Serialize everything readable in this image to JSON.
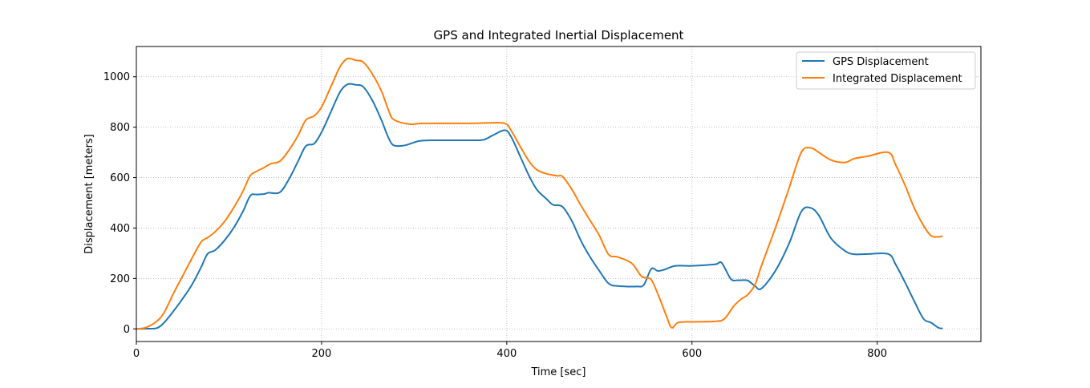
{
  "chart_data": {
    "type": "line",
    "title": "GPS and Integrated Inertial Displacement",
    "xlabel": "Time [sec]",
    "ylabel": "Displacement [meters]",
    "xlim": [
      0,
      912
    ],
    "ylim": [
      -50,
      1120
    ],
    "xticks": [
      0,
      200,
      400,
      600,
      800
    ],
    "yticks": [
      0,
      200,
      400,
      600,
      800,
      1000
    ],
    "grid": true,
    "legend_position": "upper right",
    "series": [
      {
        "name": "GPS Displacement",
        "color": "#1f77b4",
        "points": [
          [
            0,
            0
          ],
          [
            10,
            1
          ],
          [
            22,
            3
          ],
          [
            30,
            25
          ],
          [
            40,
            70
          ],
          [
            50,
            120
          ],
          [
            60,
            175
          ],
          [
            70,
            245
          ],
          [
            77,
            298
          ],
          [
            85,
            312
          ],
          [
            95,
            350
          ],
          [
            105,
            400
          ],
          [
            115,
            465
          ],
          [
            123,
            528
          ],
          [
            130,
            533
          ],
          [
            138,
            535
          ],
          [
            143,
            540
          ],
          [
            155,
            542
          ],
          [
            165,
            595
          ],
          [
            175,
            668
          ],
          [
            183,
            725
          ],
          [
            192,
            735
          ],
          [
            200,
            780
          ],
          [
            210,
            860
          ],
          [
            220,
            940
          ],
          [
            228,
            970
          ],
          [
            237,
            968
          ],
          [
            245,
            960
          ],
          [
            255,
            905
          ],
          [
            265,
            825
          ],
          [
            272,
            760
          ],
          [
            278,
            728
          ],
          [
            290,
            728
          ],
          [
            305,
            745
          ],
          [
            320,
            748
          ],
          [
            360,
            748
          ],
          [
            375,
            750
          ],
          [
            385,
            768
          ],
          [
            398,
            788
          ],
          [
            405,
            760
          ],
          [
            415,
            680
          ],
          [
            425,
            600
          ],
          [
            433,
            550
          ],
          [
            443,
            515
          ],
          [
            450,
            492
          ],
          [
            460,
            485
          ],
          [
            470,
            430
          ],
          [
            480,
            350
          ],
          [
            490,
            285
          ],
          [
            500,
            230
          ],
          [
            510,
            180
          ],
          [
            520,
            170
          ],
          [
            540,
            168
          ],
          [
            548,
            175
          ],
          [
            556,
            238
          ],
          [
            563,
            230
          ],
          [
            570,
            235
          ],
          [
            582,
            250
          ],
          [
            600,
            250
          ],
          [
            625,
            256
          ],
          [
            632,
            262
          ],
          [
            642,
            198
          ],
          [
            650,
            193
          ],
          [
            660,
            192
          ],
          [
            668,
            170
          ],
          [
            675,
            160
          ],
          [
            690,
            230
          ],
          [
            705,
            340
          ],
          [
            718,
            465
          ],
          [
            728,
            480
          ],
          [
            737,
            450
          ],
          [
            750,
            360
          ],
          [
            765,
            310
          ],
          [
            775,
            296
          ],
          [
            790,
            297
          ],
          [
            812,
            297
          ],
          [
            820,
            255
          ],
          [
            830,
            185
          ],
          [
            840,
            110
          ],
          [
            850,
            40
          ],
          [
            858,
            25
          ],
          [
            866,
            5
          ],
          [
            870,
            2
          ]
        ]
      },
      {
        "name": "Integrated Displacement",
        "color": "#ff7f0e",
        "points": [
          [
            0,
            0
          ],
          [
            10,
            5
          ],
          [
            22,
            30
          ],
          [
            30,
            65
          ],
          [
            40,
            140
          ],
          [
            50,
            210
          ],
          [
            60,
            280
          ],
          [
            70,
            345
          ],
          [
            77,
            362
          ],
          [
            85,
            385
          ],
          [
            95,
            425
          ],
          [
            105,
            480
          ],
          [
            115,
            545
          ],
          [
            123,
            608
          ],
          [
            130,
            625
          ],
          [
            138,
            640
          ],
          [
            145,
            655
          ],
          [
            155,
            665
          ],
          [
            165,
            710
          ],
          [
            175,
            770
          ],
          [
            183,
            828
          ],
          [
            192,
            845
          ],
          [
            200,
            880
          ],
          [
            210,
            960
          ],
          [
            220,
            1040
          ],
          [
            228,
            1072
          ],
          [
            237,
            1065
          ],
          [
            245,
            1058
          ],
          [
            255,
            1010
          ],
          [
            265,
            940
          ],
          [
            272,
            870
          ],
          [
            278,
            830
          ],
          [
            295,
            812
          ],
          [
            310,
            815
          ],
          [
            360,
            815
          ],
          [
            380,
            817
          ],
          [
            398,
            815
          ],
          [
            405,
            785
          ],
          [
            415,
            720
          ],
          [
            425,
            660
          ],
          [
            433,
            630
          ],
          [
            443,
            615
          ],
          [
            455,
            607
          ],
          [
            460,
            605
          ],
          [
            470,
            555
          ],
          [
            480,
            490
          ],
          [
            490,
            430
          ],
          [
            500,
            370
          ],
          [
            510,
            295
          ],
          [
            520,
            285
          ],
          [
            535,
            260
          ],
          [
            545,
            210
          ],
          [
            550,
            203
          ],
          [
            556,
            195
          ],
          [
            563,
            140
          ],
          [
            572,
            55
          ],
          [
            578,
            5
          ],
          [
            585,
            25
          ],
          [
            600,
            28
          ],
          [
            625,
            30
          ],
          [
            635,
            40
          ],
          [
            645,
            90
          ],
          [
            653,
            118
          ],
          [
            660,
            135
          ],
          [
            668,
            175
          ],
          [
            675,
            250
          ],
          [
            690,
            400
          ],
          [
            705,
            560
          ],
          [
            718,
            700
          ],
          [
            728,
            718
          ],
          [
            737,
            700
          ],
          [
            750,
            670
          ],
          [
            765,
            660
          ],
          [
            775,
            675
          ],
          [
            790,
            685
          ],
          [
            812,
            700
          ],
          [
            820,
            650
          ],
          [
            830,
            570
          ],
          [
            840,
            480
          ],
          [
            850,
            410
          ],
          [
            858,
            370
          ],
          [
            866,
            365
          ],
          [
            870,
            368
          ]
        ]
      }
    ]
  }
}
